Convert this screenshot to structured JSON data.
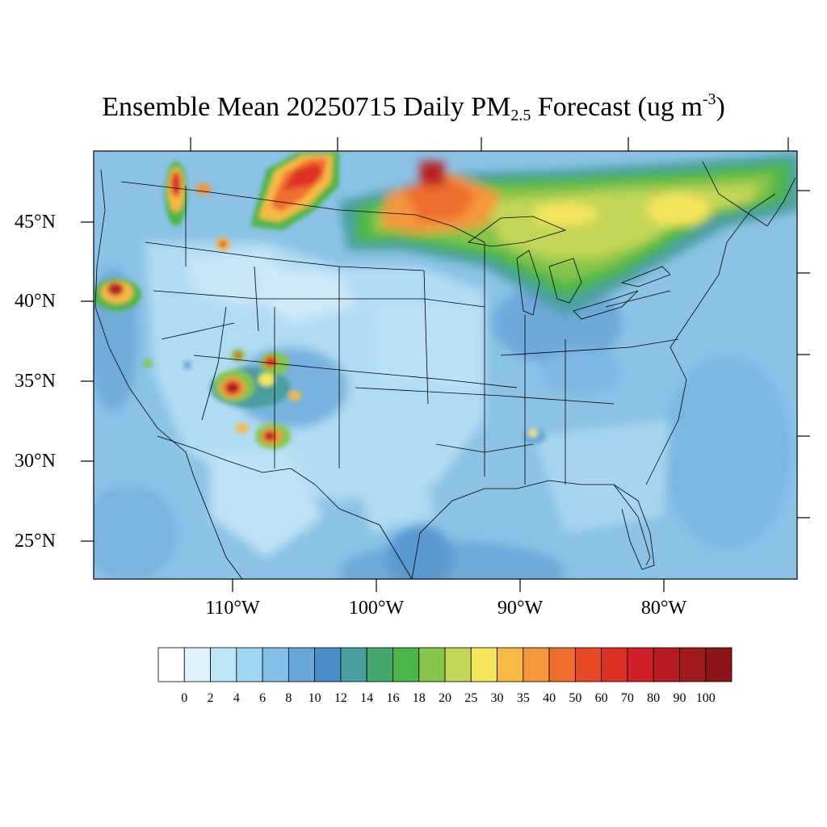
{
  "title": {
    "prefix": "Ensemble Mean 20250715 Daily PM",
    "subscript": "2.5",
    "middle": " Forecast (ug m",
    "superscript": "-3",
    "suffix": ")"
  },
  "lat_labels": [
    "45°N",
    "40°N",
    "35°N",
    "30°N",
    "25°N"
  ],
  "lon_labels": [
    "110°W",
    "100°W",
    "90°W",
    "80°W"
  ],
  "colorbar": {
    "levels": [
      "0",
      "2",
      "4",
      "6",
      "8",
      "10",
      "12",
      "14",
      "16",
      "18",
      "20",
      "25",
      "30",
      "35",
      "40",
      "50",
      "60",
      "70",
      "80",
      "90",
      "100"
    ],
    "colors": [
      "#ffffff",
      "#def3fb",
      "#bde6f7",
      "#9fd6f3",
      "#82bfe6",
      "#66a6d9",
      "#4a8dc8",
      "#4a9e9e",
      "#45a66e",
      "#4bb54a",
      "#85c54b",
      "#c3d557",
      "#f5e55a",
      "#f6b945",
      "#f4963a",
      "#ef6d2d",
      "#e84a28",
      "#de3126",
      "#cf2127",
      "#b71c22",
      "#a01b1e",
      "#8b1518"
    ]
  },
  "map_colors": {
    "land_base": "#a3d5f1",
    "ocean_base": "#8bc2e6"
  }
}
